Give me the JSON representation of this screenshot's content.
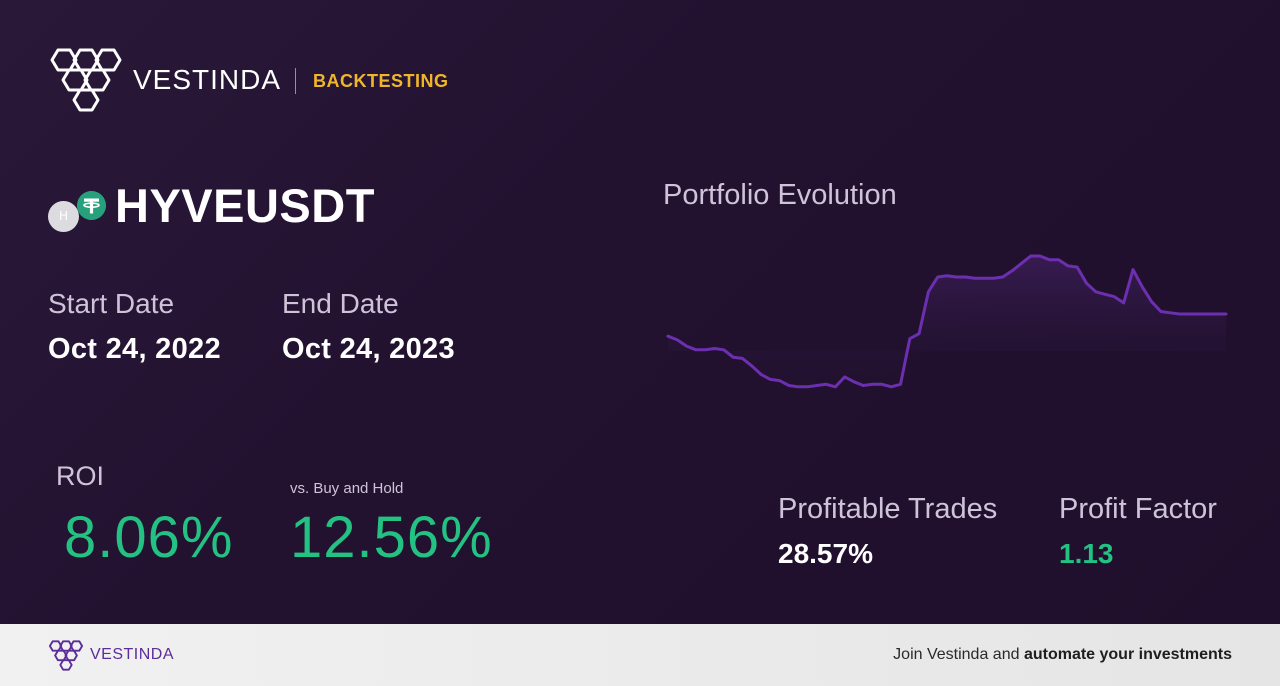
{
  "header": {
    "brand": "VESTINDA",
    "section": "BACKTESTING"
  },
  "asset": {
    "symbol": "HYVEUSDT",
    "base_icon_letter": "H",
    "base_icon": "hyve-coin-icon",
    "quote_icon": "tether-icon",
    "quote_color": "#26a17b"
  },
  "dates": {
    "start_label": "Start Date",
    "start_value": "Oct 24, 2022",
    "end_label": "End Date",
    "end_value": "Oct 24, 2023"
  },
  "performance": {
    "roi_label": "ROI",
    "roi_value": "8.06%",
    "buy_hold_label": "vs. Buy and Hold",
    "buy_hold_value": "12.56%"
  },
  "stats": {
    "profitable_trades_label": "Profitable Trades",
    "profitable_trades_value": "28.57%",
    "profit_factor_label": "Profit Factor",
    "profit_factor_value": "1.13"
  },
  "chart_data": {
    "type": "area",
    "title": "Portfolio Evolution",
    "xlabel": "",
    "ylabel": "",
    "grid": false,
    "color": "#6b2fb0",
    "x": [
      0,
      1,
      2,
      3,
      4,
      5,
      6,
      7,
      8,
      9,
      10,
      11,
      12,
      13,
      14,
      15,
      16,
      17,
      18,
      19,
      20,
      21,
      22,
      23,
      24,
      25,
      26,
      27,
      28,
      29,
      30,
      31,
      32,
      33,
      34,
      35,
      36,
      37,
      38,
      39,
      40,
      41,
      42,
      43,
      44,
      45,
      46,
      47,
      48,
      49,
      50,
      51,
      52,
      53,
      54,
      55,
      56,
      57,
      58,
      59,
      60
    ],
    "series": [
      {
        "values": [
          72,
          69,
          64,
          61,
          61,
          62,
          61,
          55,
          54,
          48,
          41,
          37,
          36,
          32,
          31,
          31,
          32,
          33,
          31,
          39,
          35,
          32,
          33,
          33,
          31,
          33,
          70,
          74,
          108,
          120,
          121,
          120,
          120,
          119,
          119,
          119,
          120,
          125,
          131,
          137,
          137,
          134,
          134,
          129,
          128,
          115,
          108,
          106,
          104,
          99,
          126,
          112,
          100,
          92,
          91,
          90,
          90,
          90,
          90,
          90,
          90
        ]
      }
    ],
    "ylim": [
      0,
      150
    ],
    "colors": {
      "line": "#6b2fb0",
      "fill_top": "#3a1f55"
    }
  },
  "footer": {
    "brand": "VESTINDA",
    "cta_prefix": "Join Vestinda and ",
    "cta_bold": "automate your investments"
  },
  "colors": {
    "accent_gold": "#f0b62b",
    "positive_green": "#23c283",
    "brand_purple": "#5b2d9a"
  }
}
